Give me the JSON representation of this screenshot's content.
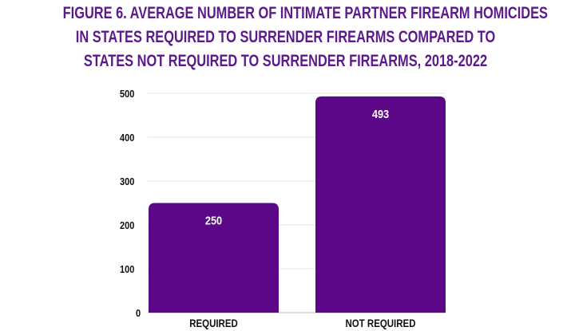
{
  "chart_data": {
    "type": "bar",
    "title_lines": [
      "FIGURE 6. AVERAGE NUMBER OF INTIMATE PARTNER FIREARM HOMICIDES",
      "IN STATES REQUIRED TO SURRENDER FIREARMS COMPARED TO",
      "STATES NOT REQUIRED TO SURRENDER FIREARMS, 2018-2022"
    ],
    "categories": [
      "REQUIRED",
      "NOT REQUIRED"
    ],
    "values": [
      250,
      493
    ],
    "data_labels": [
      "250",
      "493"
    ],
    "xlabel": "",
    "ylabel": "",
    "ylim": [
      0,
      500
    ],
    "yticks": [
      "0",
      "100",
      "200",
      "300",
      "400",
      "500"
    ],
    "grid": true,
    "legend": "none",
    "colors": {
      "bar": "#5c0787",
      "title": "#5b1a8b",
      "grid": "#e6e6e6"
    }
  }
}
